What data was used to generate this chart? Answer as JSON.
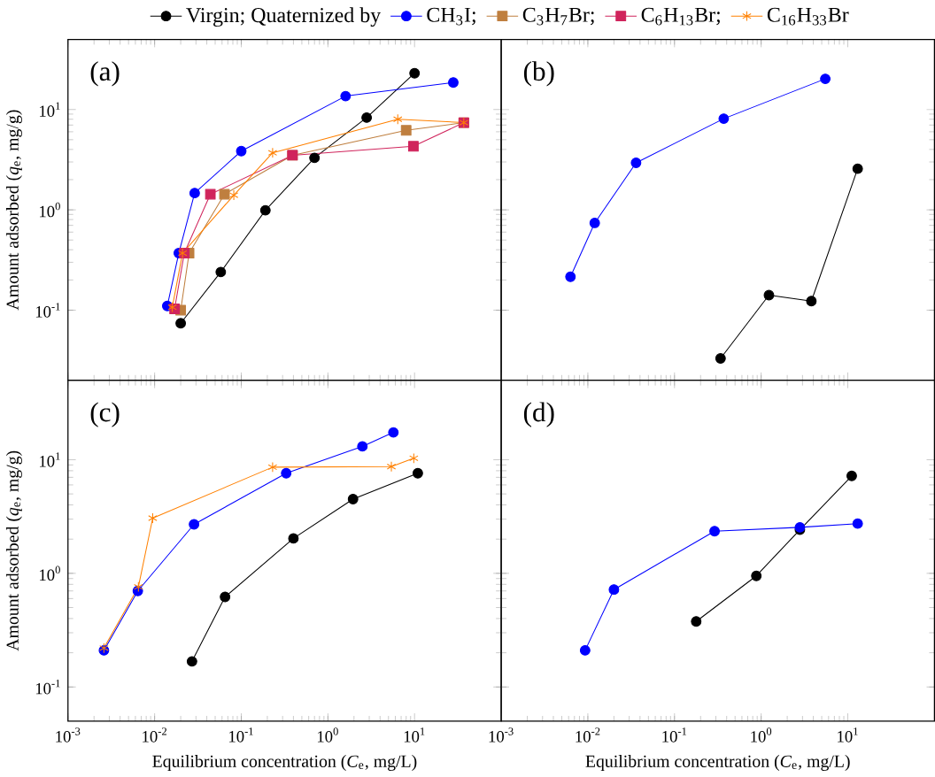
{
  "chart_data": [
    {
      "type": "line",
      "log": "xy",
      "legend": "top",
      "tick_labels": "y",
      "ylabel": "Amount adsorbed (*q*$_{e}$, mg/g)",
      "annotations": [
        "(a)"
      ],
      "xlim": [
        0.001,
        100
      ],
      "ylim": [
        0.02,
        50
      ],
      "xticks": [
        {
          "value": 0.001,
          "label": null
        },
        {
          "value": 0.01,
          "label": null
        },
        {
          "value": 0.1,
          "label": null
        },
        {
          "value": 1,
          "label": null
        },
        {
          "value": 10,
          "label": null
        }
      ],
      "yticks": [
        {
          "value": 0.1,
          "label": "10$^{-1}$"
        },
        {
          "value": 1,
          "label": "10$^{0}$"
        },
        {
          "value": 10,
          "label": "10$^{1}$"
        }
      ],
      "series": [
        {
          "name": "Virgin; Quaternized by",
          "color": "#000000",
          "marker": "circle",
          "x": [
            0.02,
            0.058,
            0.19,
            0.7,
            2.8,
            10
          ],
          "values": [
            0.074,
            0.24,
            0.99,
            3.3,
            8.3,
            23
          ]
        },
        {
          "name": "CH$_{3}$I;",
          "color": "#0000ff",
          "marker": "circle",
          "x": [
            0.014,
            0.019,
            0.029,
            0.1,
            1.6,
            28
          ],
          "values": [
            0.11,
            0.37,
            1.47,
            3.85,
            13.6,
            18.6
          ]
        },
        {
          "name": "C$_{3}$H$_{7}$Br;",
          "color": "#bf7f3f",
          "marker": "square",
          "x": [
            0.02,
            0.025,
            0.064,
            0.39,
            8.0,
            37
          ],
          "values": [
            0.1,
            0.37,
            1.43,
            3.5,
            6.2,
            7.4
          ]
        },
        {
          "name": "C$_{6}$H$_{13}$Br;",
          "color": "#d0245c",
          "marker": "square",
          "x": [
            0.017,
            0.022,
            0.044,
            0.39,
            9.7,
            37
          ],
          "values": [
            0.103,
            0.37,
            1.43,
            3.5,
            4.3,
            7.4
          ]
        },
        {
          "name": "C$_{16}$H$_{33}$Br",
          "color": "#ff8000",
          "marker": "cross",
          "x": [
            0.016,
            0.021,
            0.082,
            0.23,
            6.4,
            37
          ],
          "values": [
            0.107,
            0.37,
            1.4,
            3.7,
            8.0,
            7.4
          ]
        }
      ]
    },
    {
      "type": "line",
      "log": "xy",
      "tick_labels": false,
      "annotations": [
        "(b)"
      ],
      "xlim": [
        0.001,
        100
      ],
      "ylim": [
        0.02,
        50
      ],
      "xticks": [
        {
          "value": 0.001,
          "label": null
        },
        {
          "value": 0.01,
          "label": null
        },
        {
          "value": 0.1,
          "label": null
        },
        {
          "value": 1,
          "label": null
        },
        {
          "value": 10,
          "label": null
        }
      ],
      "yticks": [
        {
          "value": 0.1,
          "label": null
        },
        {
          "value": 1,
          "label": null
        },
        {
          "value": 10,
          "label": null
        }
      ],
      "series": [
        {
          "color": "#000000",
          "marker": "circle",
          "x": [
            0.34,
            1.23,
            3.8,
            13
          ],
          "values": [
            0.033,
            0.141,
            0.123,
            2.57
          ]
        },
        {
          "color": "#0000ff",
          "marker": "circle",
          "x": [
            0.0063,
            0.012,
            0.036,
            0.37,
            5.5
          ],
          "values": [
            0.215,
            0.74,
            2.94,
            8.1,
            20.2
          ]
        }
      ]
    },
    {
      "type": "line",
      "log": "xy",
      "xlabel": "Equilibrium concentration (*C*$_{e}$, mg/L)",
      "ylabel": "Amount adsorbed (*q*$_{e}$, mg/g)",
      "annotations": [
        "(c)"
      ],
      "xlim": [
        0.001,
        100
      ],
      "ylim": [
        0.05,
        50
      ],
      "xticks": [
        {
          "value": 0.001,
          "label": "10$^{-3}$"
        },
        {
          "value": 0.01,
          "label": "10$^{-2}$"
        },
        {
          "value": 0.1,
          "label": "10$^{-1}$"
        },
        {
          "value": 1,
          "label": "10$^{0}$"
        },
        {
          "value": 10,
          "label": "10$^{1}$"
        }
      ],
      "yticks": [
        {
          "value": 0.1,
          "label": "10$^{-1}$"
        },
        {
          "value": 1,
          "label": "10$^{0}$"
        },
        {
          "value": 10,
          "label": "10$^{1}$"
        }
      ],
      "series": [
        {
          "color": "#000000",
          "marker": "circle",
          "x": [
            0.027,
            0.065,
            0.4,
            1.95,
            10.9
          ],
          "values": [
            0.168,
            0.62,
            2.03,
            4.5,
            7.6
          ]
        },
        {
          "color": "#0000ff",
          "marker": "circle",
          "x": [
            0.0026,
            0.0064,
            0.0285,
            0.33,
            2.5,
            5.7
          ],
          "values": [
            0.21,
            0.7,
            2.7,
            7.6,
            13.1,
            17.4
          ]
        },
        {
          "color": "#ff8000",
          "marker": "cross",
          "x": [
            0.0026,
            0.0065,
            0.0095,
            0.23,
            5.4,
            9.8
          ],
          "values": [
            0.22,
            0.76,
            3.06,
            8.6,
            8.7,
            10.3
          ]
        }
      ]
    },
    {
      "type": "line",
      "log": "xy",
      "tick_labels": "x",
      "xlabel": "Equilibrium concentration (*C*$_{e}$, mg/L)",
      "annotations": [
        "(d)"
      ],
      "xlim": [
        0.001,
        100
      ],
      "ylim": [
        0.05,
        50
      ],
      "xticks": [
        {
          "value": 0.001,
          "label": "10$^{-3}$"
        },
        {
          "value": 0.01,
          "label": "10$^{-2}$"
        },
        {
          "value": 0.1,
          "label": "10$^{-1}$"
        },
        {
          "value": 1,
          "label": "10$^{0}$"
        },
        {
          "value": 10,
          "label": "10$^{1}$"
        }
      ],
      "yticks": [
        {
          "value": 0.1,
          "label": null
        },
        {
          "value": 1,
          "label": null
        },
        {
          "value": 10,
          "label": null
        }
      ],
      "series": [
        {
          "color": "#000000",
          "marker": "circle",
          "x": [
            0.178,
            0.88,
            2.8,
            11.1
          ],
          "values": [
            0.377,
            0.95,
            2.42,
            7.2
          ]
        },
        {
          "color": "#0000ff",
          "marker": "circle",
          "x": [
            0.0093,
            0.02,
            0.29,
            2.8,
            13
          ],
          "values": [
            0.21,
            0.72,
            2.35,
            2.54,
            2.74
          ]
        }
      ]
    }
  ]
}
